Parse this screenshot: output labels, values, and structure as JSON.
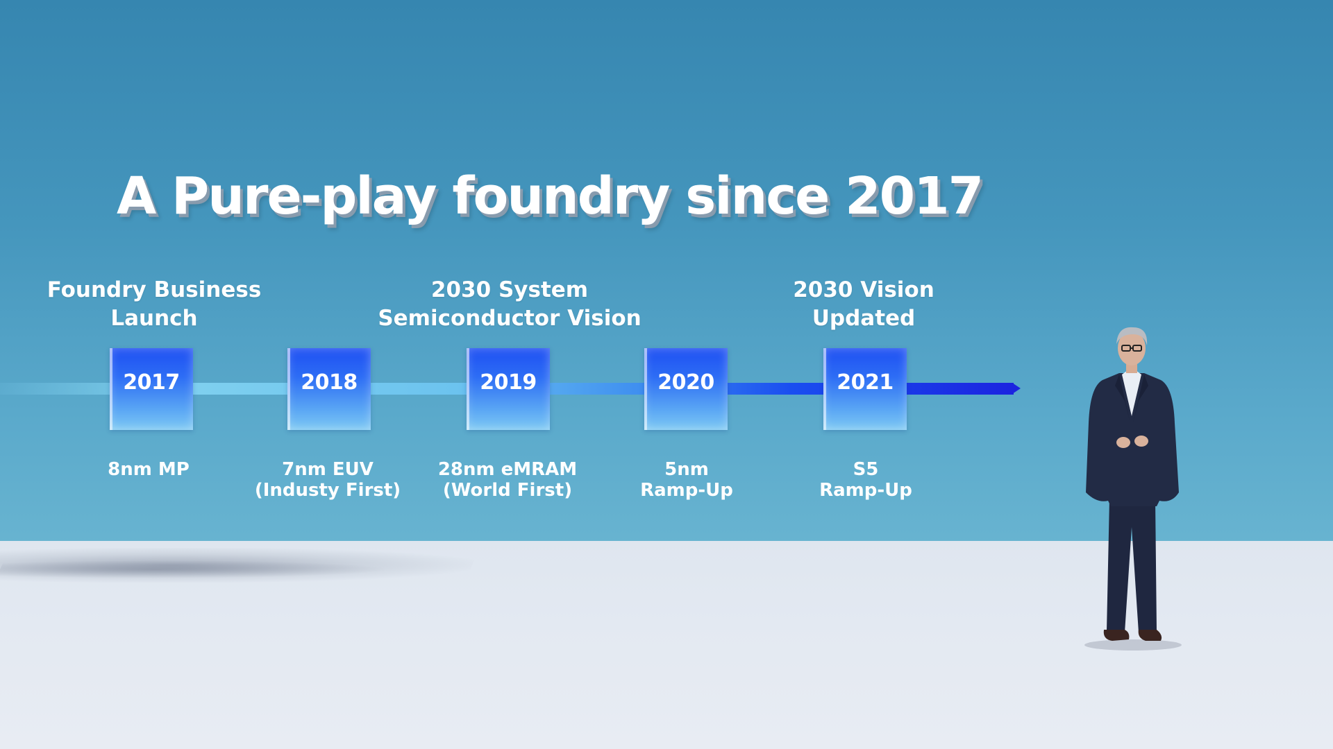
{
  "slide": {
    "title": "A Pure-play foundry since 2017"
  },
  "timeline": {
    "milestones": [
      {
        "line1": "Foundry Business",
        "line2": "Launch"
      },
      {
        "line1": "2030 System",
        "line2": "Semiconductor Vision"
      },
      {
        "line1": "2030 Vision",
        "line2": "Updated"
      }
    ],
    "years": [
      "2017",
      "2018",
      "2019",
      "2020",
      "2021"
    ],
    "events": [
      {
        "line1": "8nm MP",
        "line2": ""
      },
      {
        "line1": "7nm EUV",
        "line2": "(Industy First)"
      },
      {
        "line1": "28nm eMRAM",
        "line2": "(World First)"
      },
      {
        "line1": "5nm",
        "line2": "Ramp-Up"
      },
      {
        "line1": "S5",
        "line2": "Ramp-Up"
      }
    ]
  },
  "colors": {
    "background_top": "#3686b0",
    "background_bottom": "#6cb7d2",
    "floor": "#e3e9f2",
    "year_box": "#2d6df5",
    "track_end": "#1b24e0"
  }
}
